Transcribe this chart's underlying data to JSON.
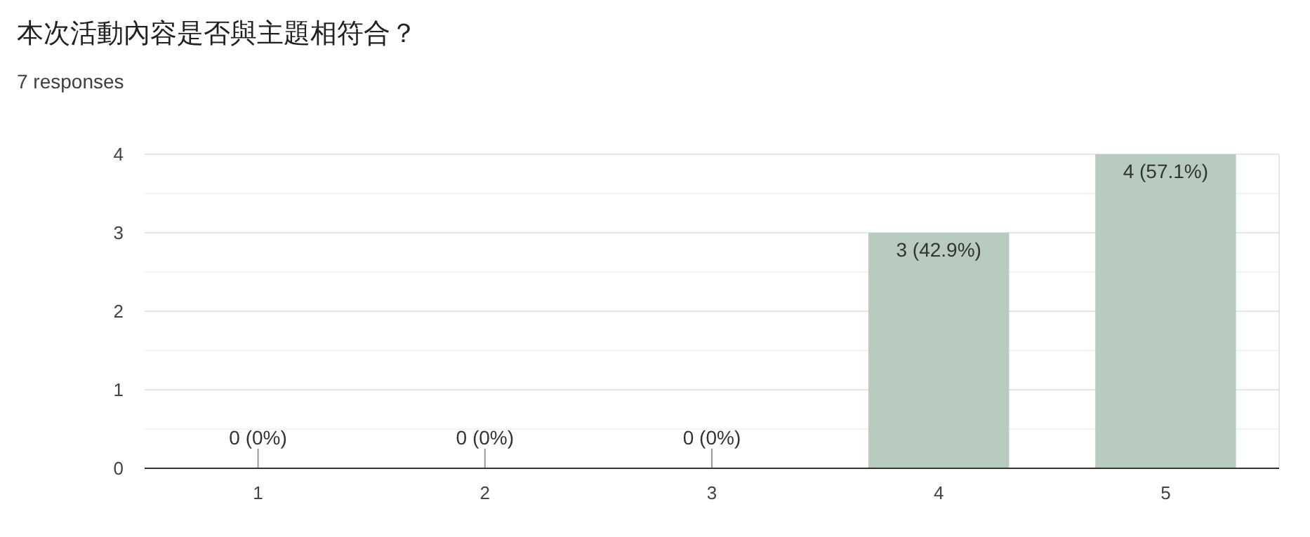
{
  "chart_data": {
    "type": "bar",
    "title": "本次活動內容是否與主題相符合？",
    "subtitle": "7 responses",
    "categories": [
      "1",
      "2",
      "3",
      "4",
      "5"
    ],
    "values": [
      0,
      0,
      0,
      3,
      4
    ],
    "value_labels": [
      "0 (0%)",
      "0 (0%)",
      "0 (0%)",
      "3 (42.9%)",
      "4 (57.1%)"
    ],
    "color": "#b7cbbf",
    "ylim": [
      0,
      4
    ],
    "yticks": [
      0,
      {
        "value": 0.5,
        "label": null
      },
      1,
      {
        "value": 1.5,
        "label": null
      },
      2,
      {
        "value": 2.5,
        "label": null
      },
      3,
      {
        "value": 3.5,
        "label": null
      },
      4
    ],
    "grid": true
  }
}
